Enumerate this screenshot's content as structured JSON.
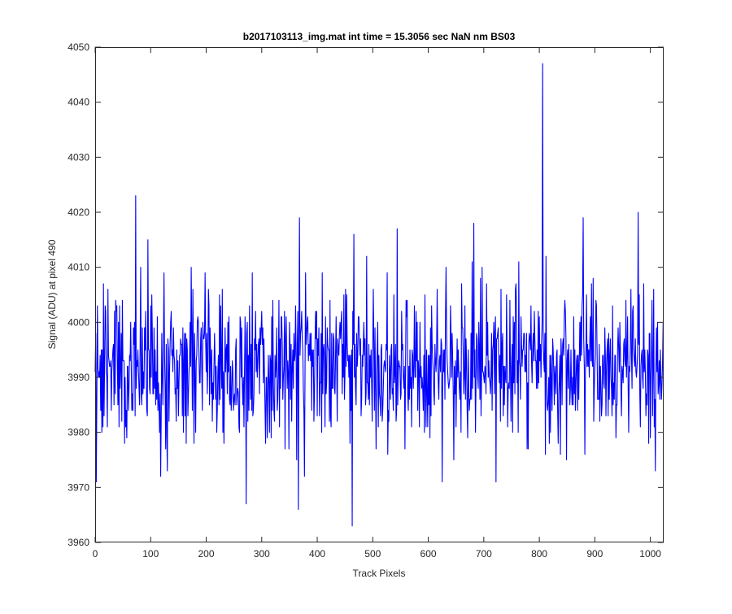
{
  "chart_data": {
    "type": "line",
    "title": "b2017103113_img.mat int time = 15.3056 sec  NaN nm BS03",
    "xlabel": "Track Pixels",
    "ylabel": "Signal (ADU) at pixel 490",
    "xlim": [
      0,
      1024
    ],
    "ylim": [
      3960,
      4050
    ],
    "x_ticks": [
      0,
      100,
      200,
      300,
      400,
      500,
      600,
      700,
      800,
      900,
      1000
    ],
    "y_ticks": [
      3960,
      3970,
      3980,
      3990,
      4000,
      4010,
      4020,
      4030,
      4040,
      4050
    ],
    "x_tick_labels": [
      "0",
      "100",
      "200",
      "300",
      "400",
      "500",
      "600",
      "700",
      "800",
      "900",
      "1000"
    ],
    "y_tick_labels": [
      "3960",
      "3970",
      "3980",
      "3990",
      "4000",
      "4010",
      "4020",
      "4030",
      "4040",
      "4050"
    ],
    "grid": false,
    "box": true,
    "series": [
      {
        "color": "#0000ff",
        "n_points": 1024,
        "baseline_mean": 3992,
        "noise_sigma": 7,
        "range_min": 3963,
        "range_max": 4047,
        "notable_points": [
          {
            "x": 2,
            "y": 3971
          },
          {
            "x": 73,
            "y": 4023
          },
          {
            "x": 95,
            "y": 4015
          },
          {
            "x": 118,
            "y": 3972
          },
          {
            "x": 272,
            "y": 3967
          },
          {
            "x": 366,
            "y": 3966
          },
          {
            "x": 368,
            "y": 4019
          },
          {
            "x": 463,
            "y": 3963
          },
          {
            "x": 466,
            "y": 4016
          },
          {
            "x": 544,
            "y": 4017
          },
          {
            "x": 682,
            "y": 4018
          },
          {
            "x": 722,
            "y": 3971
          },
          {
            "x": 806,
            "y": 4047
          },
          {
            "x": 838,
            "y": 3976
          },
          {
            "x": 879,
            "y": 4019
          },
          {
            "x": 978,
            "y": 4020
          },
          {
            "x": 1009,
            "y": 3973
          }
        ]
      }
    ]
  }
}
